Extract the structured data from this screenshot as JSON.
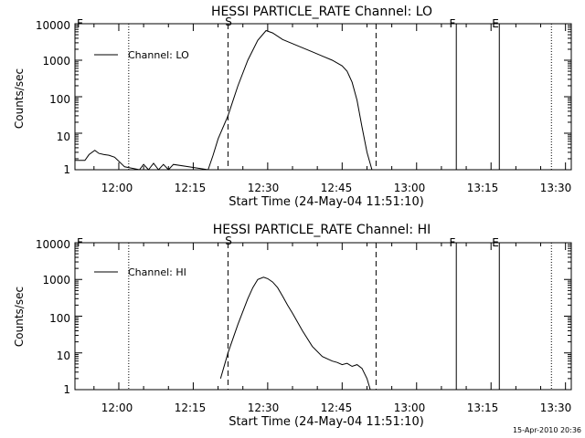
{
  "chart_data": [
    {
      "type": "line",
      "title": "HESSI PARTICLE_RATE Channel: LO",
      "xlabel": "Start Time (24-May-04 11:51:10)",
      "ylabel": "Counts/sec",
      "yscale": "log",
      "ylim": [
        1,
        10000
      ],
      "xlim": [
        "11:51:10",
        "13:31:10"
      ],
      "x_ticks": [
        "12:00",
        "12:15",
        "12:30",
        "12:45",
        "13:00",
        "13:15",
        "13:30"
      ],
      "y_ticks": [
        "1",
        "10",
        "100",
        "1000",
        "10000"
      ],
      "legend": {
        "position": "top-left",
        "entries": [
          "Channel: LO"
        ]
      },
      "grid": false,
      "series": [
        {
          "name": "Channel: LO",
          "x": [
            "11:51:10",
            "11:53:10",
            "11:54:00",
            "11:55:10",
            "11:56:00",
            "11:57:00",
            "11:58:00",
            "11:59:10",
            "12:01:10",
            "12:04:10",
            "12:05:00",
            "12:06:00",
            "12:07:00",
            "12:08:00",
            "12:09:00",
            "12:10:00",
            "12:11:00",
            "12:18:00",
            "12:19:00",
            "12:20:00",
            "12:22:00",
            "12:24:00",
            "12:26:00",
            "12:28:00",
            "12:29:40",
            "12:31:00",
            "12:33:00",
            "12:36:00",
            "12:39:00",
            "12:41:00",
            "12:43:00",
            "12:45:00",
            "12:46:00",
            "12:47:00",
            "12:48:00",
            "12:49:00",
            "12:50:00",
            "12:51:00"
          ],
          "y": [
            1.8,
            1.8,
            2.6,
            3.4,
            2.8,
            2.6,
            2.5,
            2.2,
            1.2,
            1.0,
            1.4,
            1.0,
            1.5,
            1.0,
            1.4,
            1.0,
            1.4,
            1.0,
            2.5,
            7,
            30,
            200,
            1000,
            3500,
            6500,
            5600,
            3700,
            2500,
            1700,
            1300,
            1000,
            700,
            500,
            250,
            80,
            15,
            3,
            1
          ]
        }
      ],
      "annotations": [
        {
          "label": "",
          "x": "12:02:00",
          "style": "dotted"
        },
        {
          "label": "S",
          "x": "12:22:00",
          "style": "dashed"
        },
        {
          "label": "",
          "x": "12:51:50",
          "style": "dashed"
        },
        {
          "label": "F",
          "x": "13:08:00",
          "style": "solid"
        },
        {
          "label": "E",
          "x": "13:16:40",
          "style": "solid"
        },
        {
          "label": "",
          "x": "13:27:10",
          "style": "dotted"
        }
      ]
    },
    {
      "type": "line",
      "title": "HESSI PARTICLE_RATE Channel: HI",
      "xlabel": "Start Time (24-May-04 11:51:10)",
      "ylabel": "Counts/sec",
      "yscale": "log",
      "ylim": [
        1,
        10000
      ],
      "xlim": [
        "11:51:10",
        "13:31:10"
      ],
      "x_ticks": [
        "12:00",
        "12:15",
        "12:30",
        "12:45",
        "13:00",
        "13:15",
        "13:30"
      ],
      "y_ticks": [
        "1",
        "10",
        "100",
        "1000",
        "10000"
      ],
      "legend": {
        "position": "top-left",
        "entries": [
          "Channel: HI"
        ]
      },
      "grid": false,
      "series": [
        {
          "name": "Channel: HI",
          "x": [
            "12:20:30",
            "12:22:00",
            "12:24:00",
            "12:26:00",
            "12:27:00",
            "12:28:00",
            "12:29:10",
            "12:30:00",
            "12:31:00",
            "12:32:00",
            "12:33:00",
            "12:34:00",
            "12:35:00",
            "12:37:00",
            "12:39:00",
            "12:41:00",
            "12:43:00",
            "12:44:00",
            "12:45:00",
            "12:46:00",
            "12:47:00",
            "12:48:00",
            "12:49:00",
            "12:50:00",
            "12:50:40"
          ],
          "y": [
            2,
            10,
            60,
            300,
            600,
            1000,
            1150,
            1050,
            850,
            600,
            350,
            200,
            120,
            40,
            15,
            8,
            6,
            5.5,
            4.8,
            5.2,
            4.3,
            4.8,
            3.8,
            2,
            1
          ]
        }
      ],
      "annotations": [
        {
          "label": "",
          "x": "12:02:00",
          "style": "dotted"
        },
        {
          "label": "S",
          "x": "12:22:00",
          "style": "dashed"
        },
        {
          "label": "",
          "x": "12:51:50",
          "style": "dashed"
        },
        {
          "label": "F",
          "x": "13:08:00",
          "style": "solid"
        },
        {
          "label": "E",
          "x": "13:16:40",
          "style": "solid"
        },
        {
          "label": "",
          "x": "13:27:10",
          "style": "dotted"
        }
      ]
    }
  ],
  "footer": {
    "timestamp": "15-Apr-2010 20:36"
  },
  "colors": {
    "background": "#ffffff",
    "foreground": "#000000"
  }
}
